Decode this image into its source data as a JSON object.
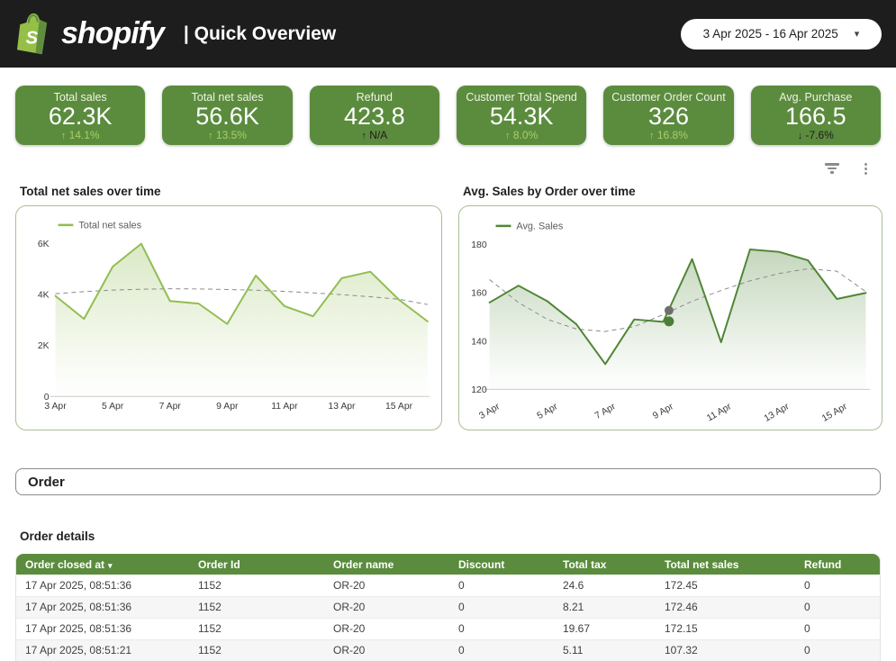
{
  "header": {
    "brand": "shopify",
    "title": "| Quick Overview",
    "date_range": "3 Apr 2025 - 16 Apr 2025"
  },
  "icons": {
    "dropdown_caret": "▾",
    "kebab": "⋮",
    "sort_caret": "▾"
  },
  "colors": {
    "header_bg": "#1d1d1d",
    "kpi_green": "#5b8c3e",
    "delta_light_green": "#a8cf6a",
    "chart1_line": "#92bd52",
    "chart2_line": "#4f8636",
    "trend_gray": "#8a8a8a",
    "table_header_green": "#5b8c3e",
    "logo_green": "#95BF47",
    "logo_dark_green": "#5E8E3E"
  },
  "kpis": [
    {
      "label": "Total sales",
      "value": "62.3K",
      "arrow": "↑",
      "delta": "14.1%"
    },
    {
      "label": "Total net sales",
      "value": "56.6K",
      "arrow": "↑",
      "delta": "13.5%"
    },
    {
      "label": "Refund",
      "value": "423.8",
      "arrow": "↑",
      "delta": "N/A"
    },
    {
      "label": "Customer Total Spend",
      "value": "54.3K",
      "arrow": "↑",
      "delta": "8.0%"
    },
    {
      "label": "Customer Order Count",
      "value": "326",
      "arrow": "↑",
      "delta": "16.8%"
    },
    {
      "label": "Avg. Purchase",
      "value": "166.5",
      "arrow": "↓",
      "delta": "-7.6%"
    }
  ],
  "chart_data": [
    {
      "type": "line",
      "title": "Total net sales over time",
      "legend": "Total net sales",
      "line_color": "#92bd52",
      "categories": [
        "3 Apr",
        "4 Apr",
        "5 Apr",
        "6 Apr",
        "7 Apr",
        "8 Apr",
        "9 Apr",
        "10 Apr",
        "11 Apr",
        "12 Apr",
        "13 Apr",
        "14 Apr",
        "15 Apr",
        "16 Apr"
      ],
      "values": [
        3950,
        3050,
        5100,
        6000,
        3750,
        3650,
        2850,
        4750,
        3550,
        3150,
        4650,
        4900,
        3800,
        2950
      ],
      "trend": [
        4040,
        4120,
        4180,
        4215,
        4230,
        4225,
        4205,
        4175,
        4130,
        4070,
        4000,
        3920,
        3820,
        3615
      ],
      "ylim": [
        0,
        7000
      ],
      "yticks": [
        {
          "value": 0,
          "label": "0"
        },
        {
          "value": 2000,
          "label": "2K"
        },
        {
          "value": 4000,
          "label": "4K"
        },
        {
          "value": 6000,
          "label": "6K"
        }
      ],
      "xticks": [
        {
          "i": 0,
          "label": "3 Apr"
        },
        {
          "i": 2,
          "label": "5 Apr"
        },
        {
          "i": 4,
          "label": "7 Apr"
        },
        {
          "i": 6,
          "label": "9 Apr"
        },
        {
          "i": 8,
          "label": "11 Apr"
        },
        {
          "i": 10,
          "label": "13 Apr"
        },
        {
          "i": 12,
          "label": "15 Apr"
        }
      ],
      "grid": false,
      "legend_position": "top-left"
    },
    {
      "type": "line",
      "title": "Avg. Sales by Order over time",
      "legend": "Avg. Sales",
      "line_color": "#4f8636",
      "categories": [
        "3 Apr",
        "4 Apr",
        "5 Apr",
        "6 Apr",
        "7 Apr",
        "8 Apr",
        "9 Apr",
        "10 Apr",
        "11 Apr",
        "12 Apr",
        "13 Apr",
        "14 Apr",
        "15 Apr",
        "16 Apr"
      ],
      "values": [
        156,
        163,
        156.5,
        147,
        130.5,
        149,
        148,
        174,
        139.5,
        178,
        177,
        173.5,
        157.5,
        160
      ],
      "trend": [
        165.5,
        156,
        149,
        145,
        144,
        146,
        151,
        156.5,
        161,
        165,
        168,
        170,
        169,
        160.5
      ],
      "markers": [
        {
          "day": 6.2,
          "value": 152.7,
          "color": "#6e6e6e",
          "r": 5
        },
        {
          "day": 6.2,
          "value": 148.2,
          "color": "#4a7f35",
          "r": 5.5
        }
      ],
      "ylim": [
        120,
        185
      ],
      "yticks": [
        {
          "value": 120,
          "label": "120"
        },
        {
          "value": 140,
          "label": "140"
        },
        {
          "value": 160,
          "label": "160"
        },
        {
          "value": 180,
          "label": "180"
        }
      ],
      "xticks": [
        {
          "i": 0,
          "label": "3 Apr"
        },
        {
          "i": 2,
          "label": "5 Apr"
        },
        {
          "i": 4,
          "label": "7 Apr"
        },
        {
          "i": 6,
          "label": "9 Apr"
        },
        {
          "i": 8,
          "label": "11 Apr"
        },
        {
          "i": 10,
          "label": "13 Apr"
        },
        {
          "i": 12,
          "label": "15 Apr"
        }
      ],
      "grid": false,
      "legend_position": "top-left"
    }
  ],
  "order_section": {
    "title": "Order"
  },
  "table": {
    "title": "Order details",
    "sort_column": "Order closed at",
    "columns": [
      "Order closed at",
      "Order Id",
      "Order name",
      "Discount",
      "Total tax",
      "Total net sales",
      "Refund"
    ],
    "rows": [
      [
        "17 Apr 2025, 08:51:36",
        "1152",
        "OR-20",
        "0",
        "24.6",
        "172.45",
        "0"
      ],
      [
        "17 Apr 2025, 08:51:36",
        "1152",
        "OR-20",
        "0",
        "8.21",
        "172.46",
        "0"
      ],
      [
        "17 Apr 2025, 08:51:36",
        "1152",
        "OR-20",
        "0",
        "19.67",
        "172.15",
        "0"
      ],
      [
        "17 Apr 2025, 08:51:21",
        "1152",
        "OR-20",
        "0",
        "5.11",
        "107.32",
        "0"
      ]
    ]
  }
}
